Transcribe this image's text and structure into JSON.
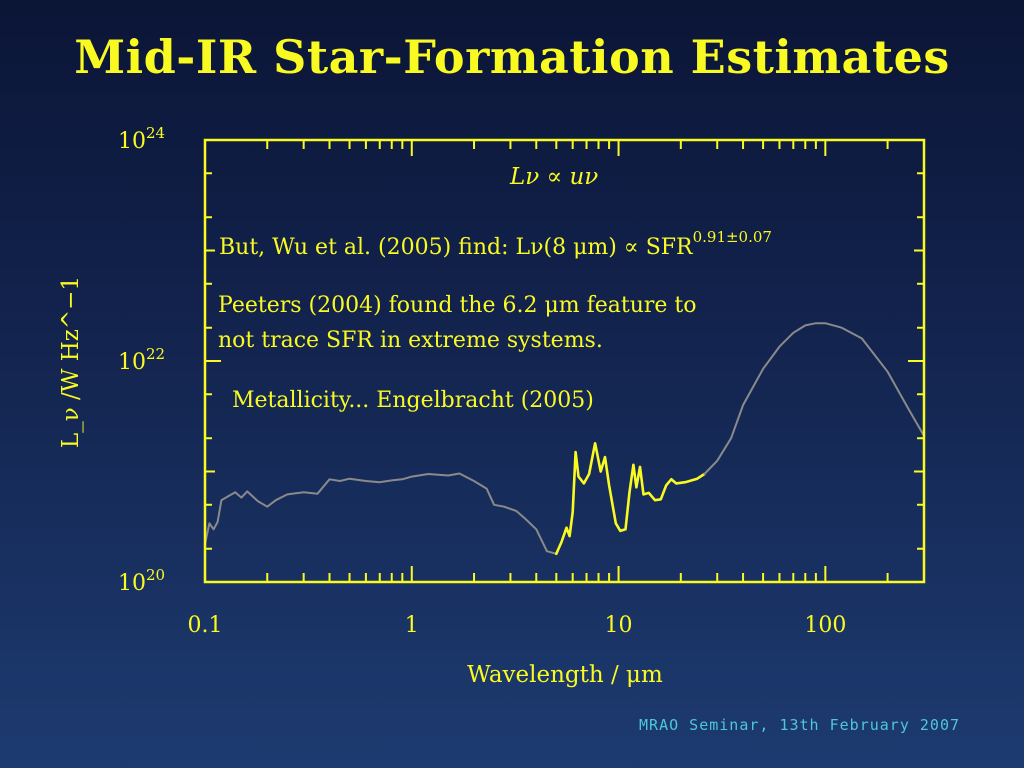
{
  "slide": {
    "title": "Mid-IR Star-Formation Estimates",
    "footer": "MRAO Seminar, 13th February 2007"
  },
  "colors": {
    "accent": "#fafa23",
    "curve_grey": "#8a8a8a",
    "footer": "#4fc6dc"
  },
  "chart_data": {
    "type": "line",
    "xscale": "log",
    "yscale": "log",
    "xlim": [
      0.1,
      300
    ],
    "ylim": [
      1e+20,
      1e+24
    ],
    "xlabel": "Wavelength / μm",
    "ylabel": "L_ν /W Hz^−1",
    "x_tick_labels": [
      "0.1",
      "1",
      "10",
      "100"
    ],
    "y_tick_labels": [
      {
        "base": "10",
        "exp": "20"
      },
      {
        "base": "10",
        "exp": "22"
      },
      {
        "base": "10",
        "exp": "24"
      }
    ],
    "annotations": {
      "proportionality": "Lν ∝ uν",
      "but_wu": "But, Wu et al. (2005) find: Lν(8 μm) ∝ SFR",
      "but_wu_exponent": "0.91±0.07",
      "peeters_line1": "Peeters (2004) found the 6.2 μm feature to",
      "peeters_line2": "not trace SFR in extreme systems.",
      "metallicity": "Metallicity... Engelbracht (2005)"
    },
    "series": [
      {
        "style": "grey",
        "points": [
          [
            0.1,
            2.2e+20
          ],
          [
            0.105,
            3.4e+20
          ],
          [
            0.11,
            3e+20
          ],
          [
            0.115,
            3.5e+20
          ],
          [
            0.12,
            5.5e+20
          ],
          [
            0.13,
            6e+20
          ],
          [
            0.14,
            6.5e+20
          ],
          [
            0.15,
            5.8e+20
          ],
          [
            0.16,
            6.6e+20
          ],
          [
            0.18,
            5.4e+20
          ],
          [
            0.2,
            4.8e+20
          ],
          [
            0.22,
            5.5e+20
          ],
          [
            0.25,
            6.2e+20
          ],
          [
            0.3,
            6.5e+20
          ],
          [
            0.35,
            6.3e+20
          ],
          [
            0.4,
            8.5e+20
          ],
          [
            0.45,
            8.2e+20
          ],
          [
            0.5,
            8.6e+20
          ],
          [
            0.6,
            8.2e+20
          ],
          [
            0.7,
            8e+20
          ],
          [
            0.8,
            8.3e+20
          ],
          [
            0.9,
            8.5e+20
          ],
          [
            1.0,
            9e+20
          ],
          [
            1.2,
            9.5e+20
          ],
          [
            1.5,
            9.2e+20
          ],
          [
            1.7,
            9.6e+20
          ],
          [
            2.0,
            8.2e+20
          ],
          [
            2.3,
            7e+20
          ],
          [
            2.5,
            5e+20
          ],
          [
            2.8,
            4.8e+20
          ],
          [
            3.2,
            4.4e+20
          ],
          [
            3.5,
            3.8e+20
          ],
          [
            4.0,
            3e+20
          ],
          [
            4.5,
            1.9e+20
          ],
          [
            5.0,
            1.8e+20
          ]
        ]
      },
      {
        "style": "yellow",
        "points": [
          [
            5.0,
            1.8e+20
          ],
          [
            5.3,
            2.3e+20
          ],
          [
            5.6,
            3.1e+20
          ],
          [
            5.8,
            2.6e+20
          ],
          [
            6.0,
            4.3e+20
          ],
          [
            6.2,
            1.5e+21
          ],
          [
            6.4,
            9e+20
          ],
          [
            6.8,
            7.8e+20
          ],
          [
            7.2,
            9.5e+20
          ],
          [
            7.7,
            1.8e+21
          ],
          [
            8.2,
            1e+21
          ],
          [
            8.6,
            1.35e+21
          ],
          [
            9.0,
            7.5e+20
          ],
          [
            9.7,
            3.4e+20
          ],
          [
            10.2,
            2.9e+20
          ],
          [
            10.8,
            3e+20
          ],
          [
            11.3,
            6.5e+20
          ],
          [
            11.8,
            1.15e+21
          ],
          [
            12.2,
            7.2e+20
          ],
          [
            12.7,
            1.1e+21
          ],
          [
            13.2,
            6.2e+20
          ],
          [
            14.0,
            6.4e+20
          ],
          [
            15.0,
            5.5e+20
          ],
          [
            16.0,
            5.6e+20
          ],
          [
            17.0,
            7.5e+20
          ],
          [
            18.0,
            8.5e+20
          ],
          [
            19.0,
            7.8e+20
          ],
          [
            21.0,
            8e+20
          ],
          [
            24.0,
            8.6e+20
          ],
          [
            26.0,
            9.5e+20
          ]
        ]
      },
      {
        "style": "grey",
        "points": [
          [
            26.0,
            9.5e+20
          ],
          [
            30.0,
            1.25e+21
          ],
          [
            35.0,
            2e+21
          ],
          [
            40.0,
            4e+21
          ],
          [
            50.0,
            8.5e+21
          ],
          [
            60.0,
            1.35e+22
          ],
          [
            70.0,
            1.8e+22
          ],
          [
            80.0,
            2.1e+22
          ],
          [
            90.0,
            2.2e+22
          ],
          [
            100.0,
            2.2e+22
          ],
          [
            120.0,
            2e+22
          ],
          [
            150.0,
            1.6e+22
          ],
          [
            200.0,
            8e+21
          ],
          [
            250.0,
            3.8e+21
          ],
          [
            300.0,
            2.1e+21
          ]
        ]
      }
    ]
  }
}
